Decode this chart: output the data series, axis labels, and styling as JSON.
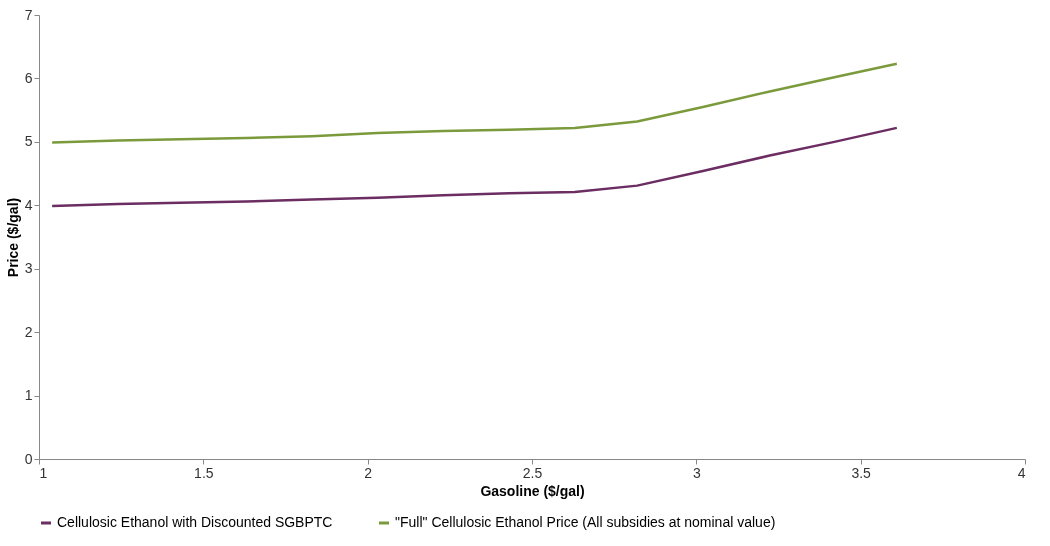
{
  "chart_data": {
    "type": "line",
    "xlabel": "Gasoline ($/gal)",
    "ylabel": "Price ($/gal)",
    "x": [
      1.04,
      1.24,
      1.43,
      1.63,
      1.83,
      2.03,
      2.23,
      2.43,
      2.63,
      2.82,
      3.02,
      3.22,
      3.42,
      3.61
    ],
    "series": [
      {
        "name": "Cellulosic Ethanol with Discounted SGBPTC",
        "color": "#6b2d62",
        "values": [
          3.99,
          4.02,
          4.04,
          4.06,
          4.09,
          4.12,
          4.16,
          4.19,
          4.21,
          4.31,
          4.54,
          4.78,
          5.0,
          5.22
        ]
      },
      {
        "name": "\"Full\" Cellulosic Ethanol Price (All subsidies at nominal value)",
        "color": "#7b9a3c",
        "values": [
          4.99,
          5.02,
          5.04,
          5.06,
          5.09,
          5.14,
          5.17,
          5.19,
          5.22,
          5.32,
          5.55,
          5.79,
          6.02,
          6.23
        ]
      }
    ],
    "xlim": [
      1,
      4
    ],
    "xticks": [
      1,
      1.5,
      2,
      2.5,
      3,
      3.5,
      4
    ],
    "ylim": [
      0,
      7
    ],
    "yticks": [
      0,
      1,
      2,
      3,
      4,
      5,
      6,
      7
    ],
    "grid": false,
    "legend": "bottom",
    "marker": "none",
    "line_style": "solid"
  }
}
